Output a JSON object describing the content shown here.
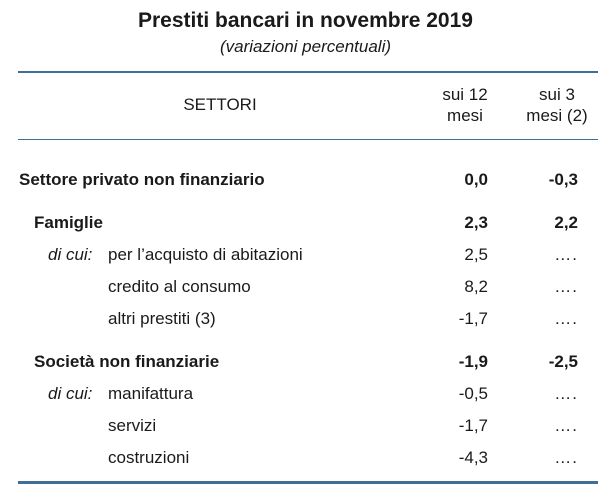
{
  "title": "Prestiti bancari in novembre 2019",
  "subtitle": "(variazioni percentuali)",
  "header": {
    "sector": "SETTORI",
    "col1_line1": "sui 12",
    "col1_line2": "mesi",
    "col2_line1": "sui 3",
    "col2_line2": "mesi (2)"
  },
  "rows": [
    {
      "prefix": "",
      "label": "Settore privato non finanziario",
      "v1": "0,0",
      "v2": "-0,3"
    },
    {
      "prefix": "",
      "label": "Famiglie",
      "v1": "2,3",
      "v2": "2,2"
    },
    {
      "prefix": "di cui:",
      "label": "per l’acquisto di abitazioni",
      "v1": "2,5",
      "v2": "…."
    },
    {
      "prefix": "",
      "label": "credito al consumo",
      "v1": "8,2",
      "v2": "…."
    },
    {
      "prefix": "",
      "label": "altri prestiti (3)",
      "v1": "-1,7",
      "v2": "…."
    },
    {
      "prefix": "",
      "label": "Società non finanziarie",
      "v1": "-1,9",
      "v2": "-2,5"
    },
    {
      "prefix": "di cui:",
      "label": "manifattura",
      "v1": "-0,5",
      "v2": "…."
    },
    {
      "prefix": "",
      "label": "servizi",
      "v1": "-1,7",
      "v2": "…."
    },
    {
      "prefix": "",
      "label": "costruzioni",
      "v1": "-4,3",
      "v2": "…."
    }
  ]
}
